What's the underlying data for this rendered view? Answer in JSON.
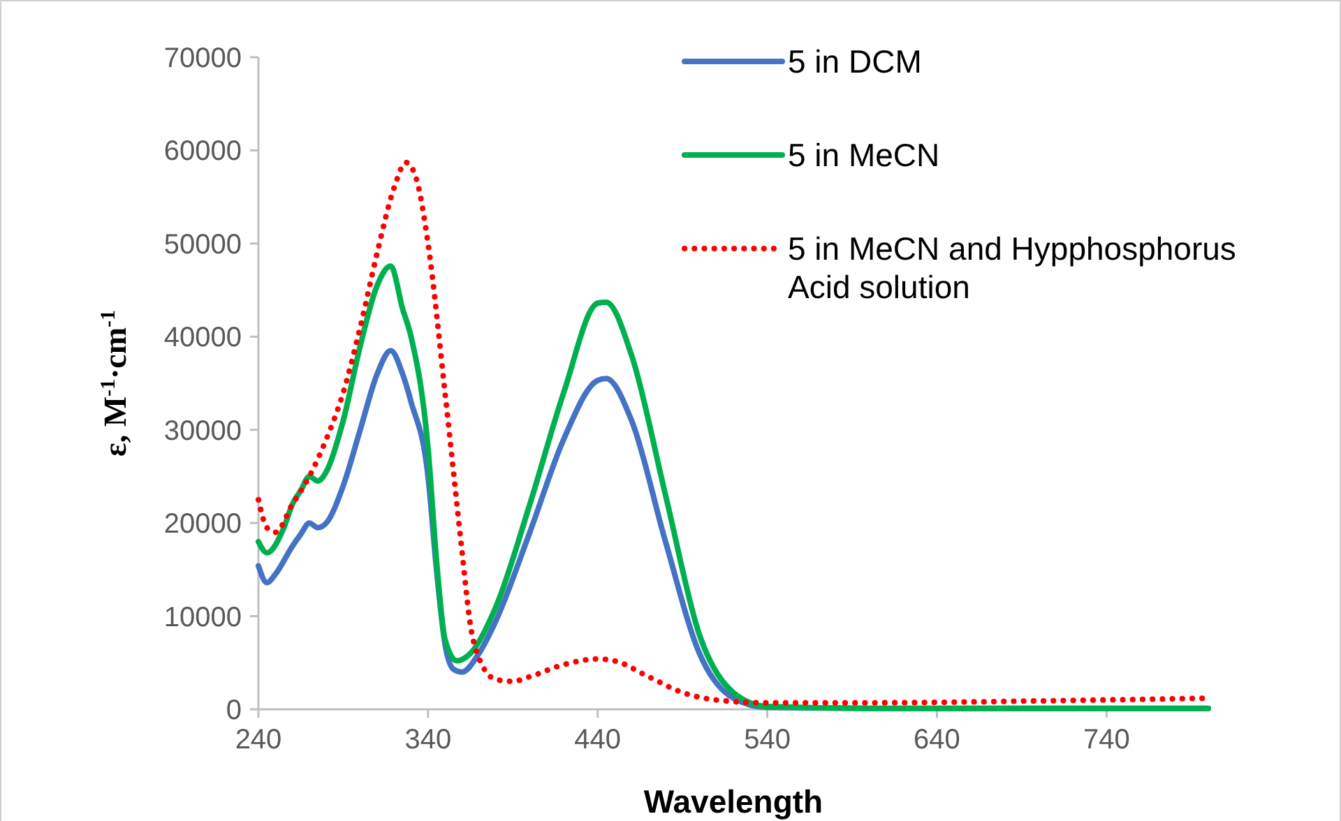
{
  "chart_data": {
    "type": "line",
    "xlabel": "Wavelength",
    "ylabel": "ε, M$^{-1}$·cm$^{-1}$",
    "xlim": [
      240,
      800
    ],
    "xticks": [
      240,
      340,
      440,
      540,
      640,
      740
    ],
    "ylim": [
      0,
      70000
    ],
    "yticks": [
      0,
      10000,
      20000,
      30000,
      40000,
      50000,
      60000,
      70000
    ],
    "grid": false,
    "legend": "top right",
    "marker": "none",
    "series": [
      {
        "name": "5 in DCM",
        "color": "#4472c4",
        "line_style": "solid",
        "x": [
          240,
          245,
          250,
          260,
          265,
          270,
          275,
          280,
          290,
          300,
          310,
          318,
          325,
          330,
          340,
          345,
          350,
          355,
          360,
          370,
          380,
          400,
          420,
          440,
          445,
          460,
          480,
          500,
          520,
          540,
          600,
          700,
          800
        ],
        "values": [
          15400,
          13600,
          14500,
          17500,
          18800,
          20000,
          19500,
          20000,
          24000,
          30000,
          36000,
          38500,
          36000,
          33000,
          25000,
          15000,
          7000,
          4300,
          4000,
          6000,
          9500,
          19000,
          29000,
          35300,
          35500,
          31000,
          18000,
          6000,
          1200,
          200,
          100,
          100,
          100
        ]
      },
      {
        "name": "5 in MeCN",
        "color": "#00b050",
        "line_style": "solid",
        "x": [
          240,
          245,
          255,
          260,
          265,
          270,
          275,
          280,
          290,
          300,
          310,
          318,
          325,
          330,
          340,
          345,
          350,
          357,
          365,
          380,
          400,
          420,
          440,
          445,
          460,
          480,
          500,
          520,
          540,
          600,
          700,
          800
        ],
        "values": [
          18000,
          16800,
          19500,
          22000,
          23500,
          25000,
          24500,
          25500,
          31000,
          39000,
          45500,
          47600,
          43000,
          40000,
          28000,
          16000,
          7500,
          5200,
          6000,
          11000,
          22000,
          34000,
          43600,
          43700,
          38000,
          23000,
          8000,
          1800,
          300,
          100,
          100,
          100
        ]
      },
      {
        "name": "5 in MeCN and Hypphosphorus Acid solution",
        "color": "#ff0000",
        "line_style": "dotted",
        "x": [
          240,
          245,
          250,
          260,
          270,
          280,
          290,
          300,
          310,
          320,
          327,
          333,
          340,
          350,
          360,
          365,
          370,
          380,
          390,
          400,
          420,
          440,
          450,
          470,
          490,
          510,
          540,
          600,
          700,
          800
        ],
        "values": [
          22500,
          19500,
          19000,
          22000,
          25000,
          29000,
          34000,
          41000,
          49000,
          56000,
          58700,
          57000,
          50000,
          34000,
          17000,
          9000,
          5500,
          3200,
          3000,
          3500,
          4800,
          5400,
          5200,
          3500,
          1800,
          1000,
          700,
          700,
          900,
          1200
        ]
      }
    ]
  }
}
